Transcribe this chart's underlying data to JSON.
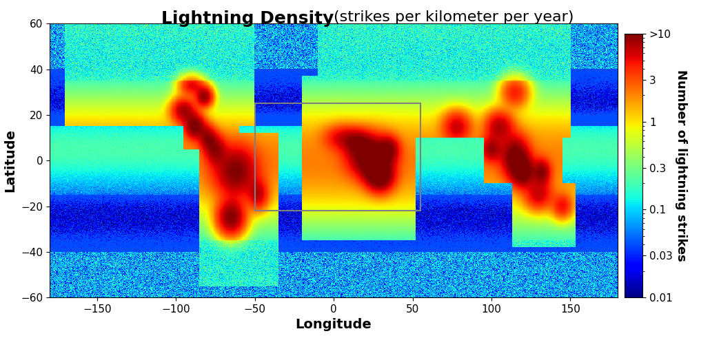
{
  "title_bold": "Lightning Density",
  "title_normal": "(strikes per kilometer per year)",
  "xlabel": "Longitude",
  "ylabel": "Latitude",
  "colorbar_label": "Number of lightning strikes",
  "colorbar_ticks": [
    0.01,
    0.03,
    0.1,
    0.3,
    1,
    3,
    10
  ],
  "colorbar_ticklabels": [
    "0.01",
    "0.03",
    "0.1",
    "0.3",
    "1",
    "3",
    ">10"
  ],
  "vmin_log": -2,
  "vmax_log": 1,
  "xlim": [
    -180,
    180
  ],
  "ylim": [
    -60,
    60
  ],
  "xticks": [
    -150,
    -100,
    -50,
    0,
    50,
    100,
    150
  ],
  "yticks": [
    -60,
    -40,
    -20,
    0,
    20,
    40,
    60
  ],
  "rect_x1": -50,
  "rect_y1": -22,
  "rect_x2": 55,
  "rect_y2": 25,
  "rect_color": "gray",
  "background_color": "#ffffff",
  "title_fontsize": 18,
  "axis_label_fontsize": 14,
  "tick_fontsize": 11
}
